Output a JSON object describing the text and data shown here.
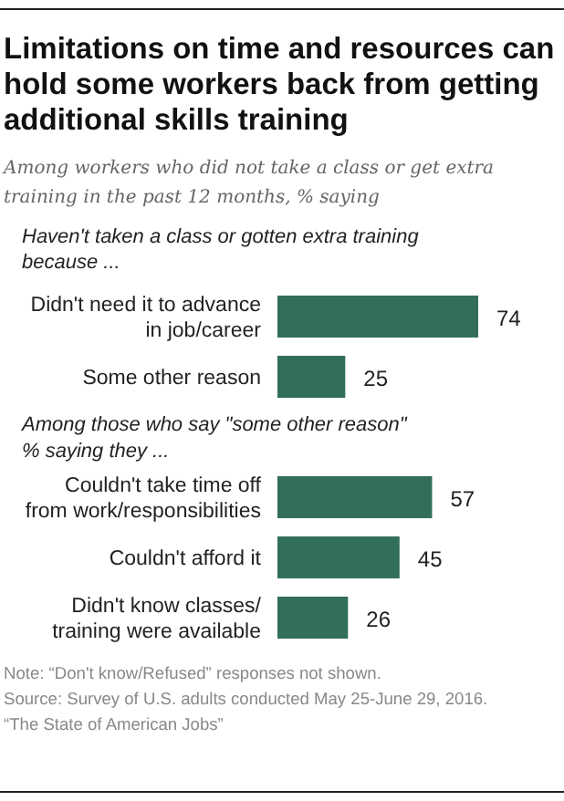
{
  "chart_data": [
    {
      "type": "bar",
      "orientation": "horizontal",
      "title": "Limitations on time and resources can\nhold some workers back from getting\nadditional skills training",
      "subtitle": "Among workers who did not take a class or get extra\ntraining in the past 12 months, % saying",
      "annotations": [
        "Haven't taken a class or gotten extra training\nbecause ..."
      ],
      "categories": [
        "Didn't need it to advance\nin job/career",
        "Some other reason"
      ],
      "values": [
        74,
        25
      ],
      "color": "#336e5c",
      "data_labels": true
    },
    {
      "type": "bar",
      "orientation": "horizontal",
      "annotations": [
        "Among those who say \"some other reason\"\n% saying they ...",
        "Note: “Don't know/Refused” responses not shown.",
        "Source: Survey of U.S. adults conducted May 25-June 29, 2016.",
        "“The State of American Jobs”"
      ],
      "categories": [
        "Couldn't take time off\nfrom work/responsibilities",
        "Couldn't afford it",
        "Didn't know classes/\ntraining were available"
      ],
      "values": [
        57,
        45,
        26
      ],
      "color": "#336e5c",
      "data_labels": true
    }
  ]
}
